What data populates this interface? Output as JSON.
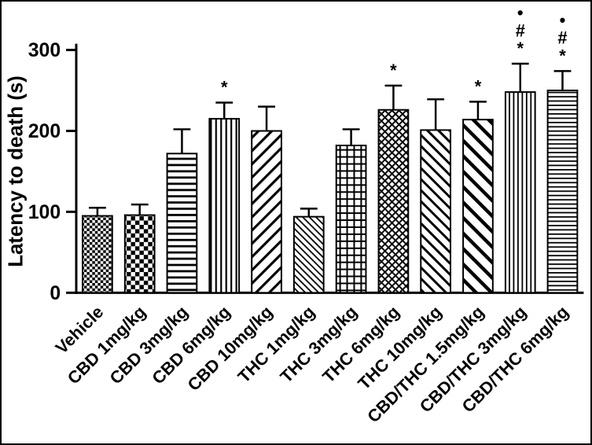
{
  "figure": {
    "background": "#ffffff",
    "ink_color": "#000000",
    "border_color": "#000000"
  },
  "chart_data": {
    "type": "bar",
    "title": "",
    "ylabel": "Latency to death (s)",
    "xlabel": "",
    "ylim": [
      0,
      300
    ],
    "yticks": [
      0,
      100,
      200,
      300
    ],
    "grid": false,
    "legend": null,
    "categories": [
      "Vehicle",
      "CBD 1mg/kg",
      "CBD 3mg/kg",
      "CBD 6mg/kg",
      "CBD 10mg/kg",
      "THC 1mg/kg",
      "THC 3mg/kg",
      "THC 6mg/kg",
      "THC 10mg/kg",
      "CBD/THC 1.5mg/kg",
      "CBD/THC 3mg/kg",
      "CBD/THC 6mg/kg"
    ],
    "values": [
      95,
      96,
      172,
      215,
      200,
      94,
      182,
      226,
      201,
      214,
      248,
      250
    ],
    "errors_upper": [
      10,
      13,
      30,
      20,
      30,
      10,
      20,
      30,
      38,
      22,
      35,
      24
    ],
    "significance": [
      [],
      [],
      [],
      [
        "*"
      ],
      [],
      [],
      [],
      [
        "*"
      ],
      [],
      [
        "*"
      ],
      [
        "*",
        "#",
        "•"
      ],
      [
        "*",
        "#",
        "•"
      ]
    ],
    "bar_patterns": [
      "checker-fine",
      "checker",
      "lines-horizontal",
      "lines-vertical",
      "diagonal-forward-wide",
      "diagonal-back-fine",
      "grid-cross",
      "diagonal-crosshatch",
      "diagonal-back-medium",
      "diagonal-back-wide",
      "lines-vertical-fine",
      "lines-horizontal-fine"
    ],
    "bar_fill": "#ffffff",
    "bar_stroke": "#000000"
  }
}
